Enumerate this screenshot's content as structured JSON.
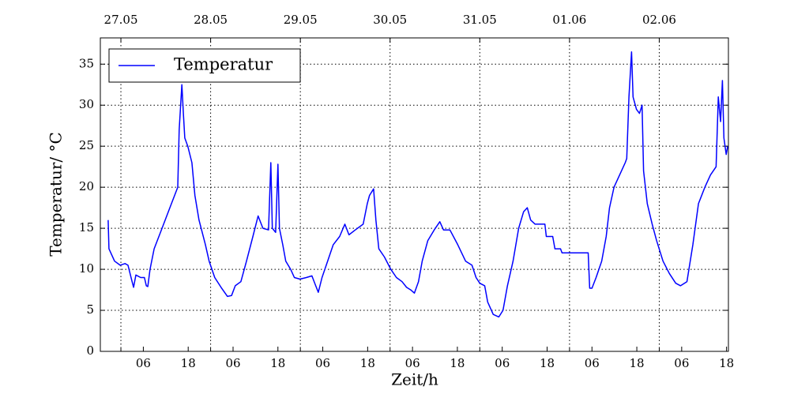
{
  "chart_data": {
    "type": "line",
    "xlabel": "Zeit/h",
    "ylabel": "Temperatur/ °C",
    "x": [
      -3.4,
      -3.2,
      -1.7,
      -0.2,
      1.1,
      1.9,
      3.0,
      3.4,
      4.0,
      5.3,
      6.3,
      6.8,
      7.2,
      7.8,
      8.9,
      11.0,
      13.1,
      15.2,
      15.6,
      16.3,
      16.7,
      17.1,
      17.9,
      19.0,
      19.8,
      20.9,
      22.6,
      23.6,
      25.1,
      26.8,
      28.5,
      29.6,
      30.6,
      32.1,
      33.6,
      35.3,
      36.7,
      38.0,
      39.5,
      40.1,
      40.5,
      41.4,
      42.0,
      42.4,
      43.3,
      44.1,
      45.4,
      46.4,
      47.9,
      49.6,
      51.1,
      52.1,
      52.8,
      53.8,
      55.3,
      56.8,
      58.5,
      59.9,
      61.0,
      62.7,
      64.8,
      65.9,
      66.5,
      67.6,
      68.2,
      69.0,
      70.5,
      72.2,
      73.7,
      75.2,
      76.4,
      77.5,
      78.5,
      79.6,
      80.6,
      82.1,
      83.8,
      85.3,
      86.3,
      88.0,
      90.1,
      92.2,
      93.9,
      95.0,
      96.0,
      97.3,
      98.1,
      99.6,
      101.1,
      102.2,
      103.4,
      104.9,
      106.4,
      107.7,
      108.7,
      109.6,
      110.8,
      113.4,
      113.8,
      115.5,
      116.1,
      117.6,
      118.0,
      125.0,
      125.4,
      126.0,
      127.1,
      128.6,
      129.8,
      130.7,
      131.9,
      133.4,
      134.9,
      135.3,
      135.9,
      136.6,
      137.0,
      137.9,
      138.7,
      139.4,
      139.8,
      140.8,
      142.1,
      143.3,
      145.0,
      146.7,
      148.4,
      149.7,
      151.4,
      153.0,
      154.5,
      156.2,
      157.7,
      159.2,
      159.8,
      160.4,
      160.9,
      161.3,
      161.9,
      162.3
    ],
    "series": [
      {
        "name": "Temperatur",
        "color": "#0000ff",
        "values": [
          16,
          12.5,
          11,
          10.5,
          10.7,
          10.5,
          8.5,
          7.8,
          9.3,
          9,
          9,
          8,
          7.9,
          10,
          12.5,
          15,
          17.5,
          20,
          27,
          32.5,
          29,
          26,
          25,
          23,
          19,
          16,
          13,
          11,
          9,
          7.8,
          6.7,
          6.8,
          8,
          8.5,
          11,
          14,
          16.5,
          15,
          14.8,
          23,
          15,
          14.5,
          22.8,
          15,
          13,
          11,
          10,
          9,
          8.8,
          9,
          9.2,
          8,
          7.2,
          9,
          11,
          13,
          14,
          15.5,
          14.2,
          14.8,
          15.5,
          18,
          19,
          19.8,
          16,
          12.5,
          11.5,
          10,
          9,
          8.5,
          7.8,
          7.5,
          7.1,
          8.5,
          11,
          13.5,
          14.8,
          15.8,
          14.8,
          14.8,
          13,
          11,
          10.5,
          9,
          8.3,
          8,
          6,
          4.5,
          4.2,
          5,
          8,
          11,
          15,
          17,
          17.5,
          16,
          15.5,
          15.5,
          14,
          14,
          12.5,
          12.5,
          12,
          12,
          7.7,
          7.7,
          9,
          11,
          14,
          17.5,
          20,
          21.5,
          23,
          23.5,
          31,
          36.5,
          31,
          29.5,
          29,
          30,
          22,
          18,
          15.5,
          13.5,
          11,
          9.5,
          8.3,
          8,
          8.5,
          13,
          18,
          20,
          21.5,
          22.5,
          31,
          28,
          33,
          26,
          24,
          25
        ]
      }
    ],
    "xlim": [
      -5.5,
      162.5
    ],
    "ylim": [
      0,
      38.2
    ],
    "yticks": [
      0,
      5,
      10,
      15,
      20,
      25,
      30,
      35
    ],
    "xticks": [
      {
        "value": 6,
        "label": "06"
      },
      {
        "value": 18,
        "label": "18"
      },
      {
        "value": 30,
        "label": "06"
      },
      {
        "value": 42,
        "label": "18"
      },
      {
        "value": 54,
        "label": "06"
      },
      {
        "value": 66,
        "label": "18"
      },
      {
        "value": 78,
        "label": "06"
      },
      {
        "value": 90,
        "label": "18"
      },
      {
        "value": 102,
        "label": "06"
      },
      {
        "value": 114,
        "label": "18"
      },
      {
        "value": 126,
        "label": "06"
      },
      {
        "value": 138,
        "label": "18"
      },
      {
        "value": 150,
        "label": "06"
      },
      {
        "value": 162,
        "label": "18"
      }
    ],
    "x2ticks": [
      {
        "value": 0,
        "label": "27.05"
      },
      {
        "value": 24,
        "label": "28.05"
      },
      {
        "value": 48,
        "label": "29.05"
      },
      {
        "value": 72,
        "label": "30.05"
      },
      {
        "value": 96,
        "label": "31.05"
      },
      {
        "value": 120,
        "label": "01.06"
      },
      {
        "value": 144,
        "label": "02.06"
      }
    ],
    "grid": true,
    "legend": "upper left"
  }
}
